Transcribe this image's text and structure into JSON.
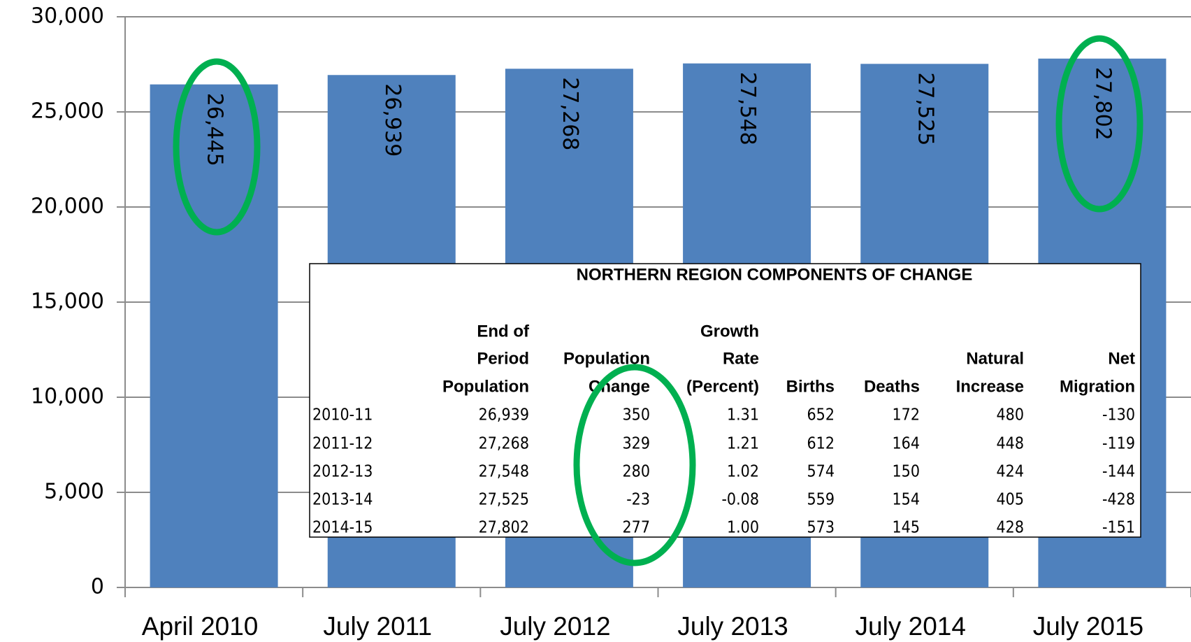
{
  "chart_data": {
    "type": "bar",
    "categories": [
      "April 2010",
      "July 2011",
      "July 2012",
      "July 2013",
      "July 2014",
      "July 2015"
    ],
    "values": [
      26445,
      26939,
      27268,
      27548,
      27525,
      27802
    ],
    "value_labels": [
      "26,445",
      "26,939",
      "27,268",
      "27,548",
      "27,525",
      "27,802"
    ],
    "color": "#4f81bd",
    "ylim": [
      0,
      30000
    ],
    "yticks": [
      0,
      {
        "value": 5000,
        "label": "5,000"
      },
      {
        "value": 10000,
        "label": "10,000"
      },
      {
        "value": 15000,
        "label": "15,000"
      },
      {
        "value": 20000,
        "label": "20,000"
      },
      {
        "value": 25000,
        "label": "25,000"
      },
      {
        "value": 30000,
        "label": "30,000"
      }
    ],
    "grid": true
  },
  "table": {
    "title": "NORTHERN REGION COMPONENTS OF CHANGE",
    "header": [
      [
        "End of",
        "Period",
        "Population"
      ],
      [
        "Population",
        "Change"
      ],
      [
        "Growth",
        "Rate",
        "(Percent)"
      ],
      [
        "Births"
      ],
      [
        "Deaths"
      ],
      [
        "Natural",
        "Increase"
      ],
      [
        "Net",
        "Migration"
      ]
    ],
    "rows": [
      [
        "2010-11",
        "26,939",
        "350",
        "1.31",
        "652",
        "172",
        "480",
        "-130"
      ],
      [
        "2011-12",
        "27,268",
        "329",
        "1.21",
        "612",
        "164",
        "448",
        "-119"
      ],
      [
        "2012-13",
        "27,548",
        "280",
        "1.02",
        "574",
        "150",
        "424",
        "-144"
      ],
      [
        "2013-14",
        "27,525",
        "-23",
        "-0.08",
        "559",
        "154",
        "405",
        "-428"
      ],
      [
        "2014-15",
        "27,802",
        "277",
        "1.00",
        "573",
        "145",
        "428",
        "-151"
      ]
    ]
  }
}
